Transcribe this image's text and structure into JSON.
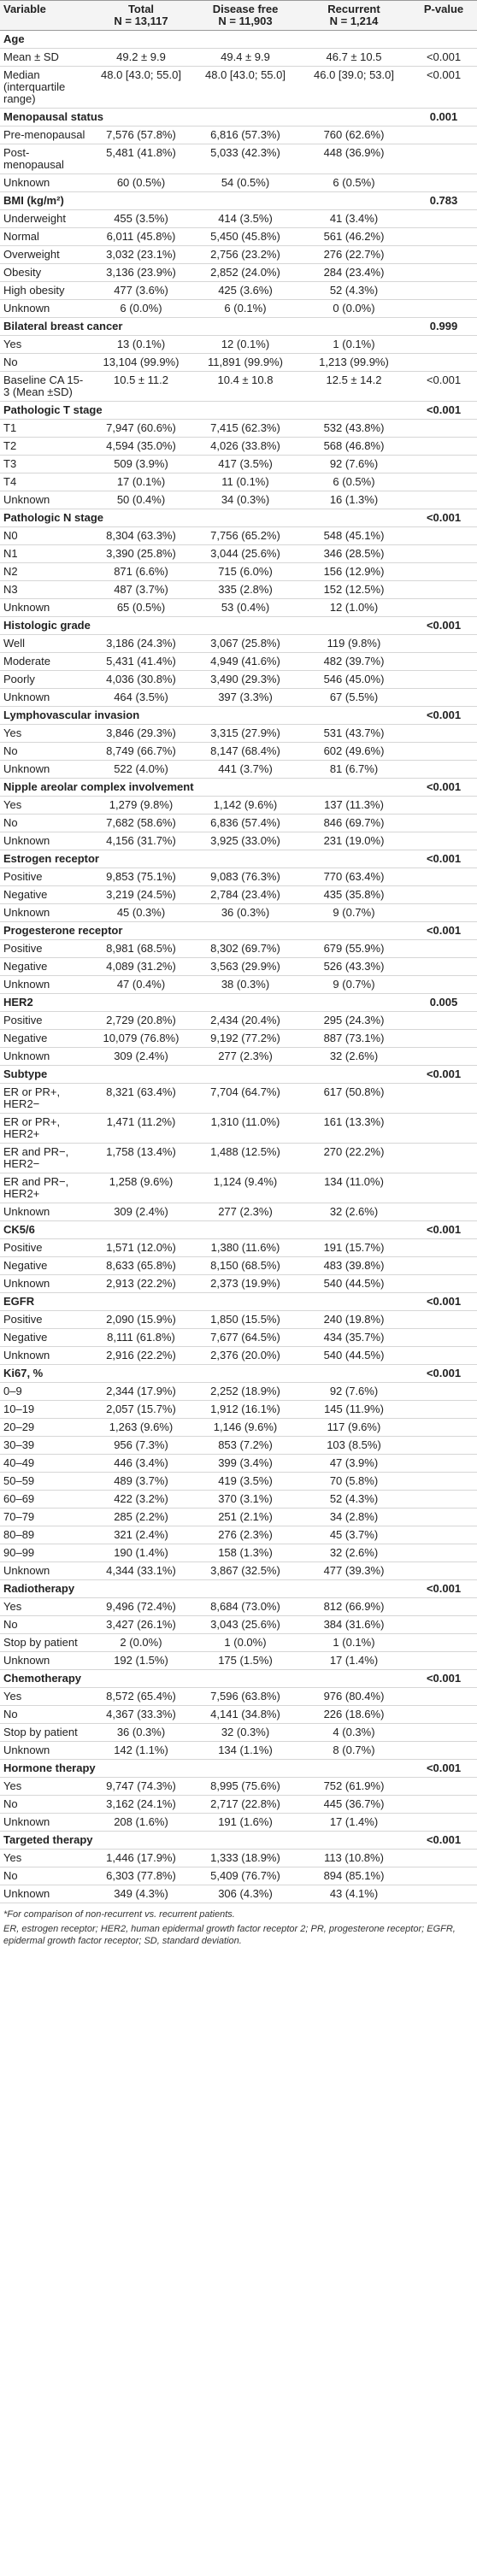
{
  "table": {
    "columns": [
      {
        "title": "Variable"
      },
      {
        "title": "Total",
        "n": "N = 13,117"
      },
      {
        "title": "Disease free",
        "n": "N = 11,903"
      },
      {
        "title": "Recurrent",
        "n": "N = 1,214"
      },
      {
        "title": "P-value"
      }
    ],
    "groups": [
      {
        "title": "Age",
        "rows": [
          [
            "Mean ± SD",
            "49.2 ± 9.9",
            "49.4 ± 9.9",
            "46.7 ± 10.5",
            "<0.001"
          ],
          [
            "Median (interquartile range)",
            "48.0 [43.0; 55.0]",
            "48.0 [43.0; 55.0]",
            "46.0 [39.0; 53.0]",
            "<0.001"
          ]
        ]
      },
      {
        "title": "Menopausal status",
        "p": "0.001",
        "rows": [
          [
            "Pre-menopausal",
            "7,576 (57.8%)",
            "6,816 (57.3%)",
            "760 (62.6%)"
          ],
          [
            "Post-menopausal",
            "5,481 (41.8%)",
            "5,033 (42.3%)",
            "448 (36.9%)"
          ],
          [
            "Unknown",
            "60 (0.5%)",
            "54 (0.5%)",
            "6 (0.5%)"
          ]
        ]
      },
      {
        "title": "BMI (kg/m²)",
        "p": "0.783",
        "rows": [
          [
            "Underweight",
            "455 (3.5%)",
            "414 (3.5%)",
            "41 (3.4%)"
          ],
          [
            "Normal",
            "6,011 (45.8%)",
            "5,450 (45.8%)",
            "561 (46.2%)"
          ],
          [
            "Overweight",
            "3,032 (23.1%)",
            "2,756 (23.2%)",
            "276 (22.7%)"
          ],
          [
            "Obesity",
            "3,136 (23.9%)",
            "2,852 (24.0%)",
            "284 (23.4%)"
          ],
          [
            "High obesity",
            "477 (3.6%)",
            "425 (3.6%)",
            "52 (4.3%)"
          ],
          [
            "Unknown",
            "6 (0.0%)",
            "6 (0.1%)",
            "0 (0.0%)"
          ]
        ]
      },
      {
        "title": "Bilateral breast cancer",
        "p": "0.999",
        "rows": [
          [
            "Yes",
            "13 (0.1%)",
            "12 (0.1%)",
            "1 (0.1%)"
          ],
          [
            "No",
            "13,104 (99.9%)",
            "11,891 (99.9%)",
            "1,213 (99.9%)"
          ],
          [
            "Baseline CA 15-3 (Mean ±SD)",
            "10.5 ± 11.2",
            "10.4 ± 10.8",
            "12.5 ± 14.2",
            "<0.001"
          ]
        ]
      },
      {
        "title": "Pathologic T stage",
        "p": "<0.001",
        "rows": [
          [
            "T1",
            "7,947 (60.6%)",
            "7,415 (62.3%)",
            "532 (43.8%)"
          ],
          [
            "T2",
            "4,594 (35.0%)",
            "4,026 (33.8%)",
            "568 (46.8%)"
          ],
          [
            "T3",
            "509 (3.9%)",
            "417 (3.5%)",
            "92 (7.6%)"
          ],
          [
            "T4",
            "17 (0.1%)",
            "11 (0.1%)",
            "6 (0.5%)"
          ],
          [
            "Unknown",
            "50 (0.4%)",
            "34 (0.3%)",
            "16 (1.3%)"
          ]
        ]
      },
      {
        "title": "Pathologic N stage",
        "p": "<0.001",
        "rows": [
          [
            "N0",
            "8,304 (63.3%)",
            "7,756 (65.2%)",
            "548 (45.1%)"
          ],
          [
            "N1",
            "3,390 (25.8%)",
            "3,044 (25.6%)",
            "346 (28.5%)"
          ],
          [
            "N2",
            "871 (6.6%)",
            "715 (6.0%)",
            "156 (12.9%)"
          ],
          [
            "N3",
            "487 (3.7%)",
            "335 (2.8%)",
            "152 (12.5%)"
          ],
          [
            "Unknown",
            "65 (0.5%)",
            "53 (0.4%)",
            "12 (1.0%)"
          ]
        ]
      },
      {
        "title": "Histologic grade",
        "p": "<0.001",
        "rows": [
          [
            "Well",
            "3,186 (24.3%)",
            "3,067 (25.8%)",
            "119 (9.8%)"
          ],
          [
            "Moderate",
            "5,431 (41.4%)",
            "4,949 (41.6%)",
            "482 (39.7%)"
          ],
          [
            "Poorly",
            "4,036 (30.8%)",
            "3,490 (29.3%)",
            "546 (45.0%)"
          ],
          [
            "Unknown",
            "464 (3.5%)",
            "397 (3.3%)",
            "67 (5.5%)"
          ]
        ]
      },
      {
        "title": "Lymphovascular invasion",
        "p": "<0.001",
        "rows": [
          [
            "Yes",
            "3,846 (29.3%)",
            "3,315 (27.9%)",
            "531 (43.7%)"
          ],
          [
            "No",
            "8,749 (66.7%)",
            "8,147 (68.4%)",
            "602 (49.6%)"
          ],
          [
            "Unknown",
            "522 (4.0%)",
            "441 (3.7%)",
            "81 (6.7%)"
          ]
        ]
      },
      {
        "title": "Nipple areolar complex involvement",
        "p": "<0.001",
        "rows": [
          [
            "Yes",
            "1,279 (9.8%)",
            "1,142 (9.6%)",
            "137 (11.3%)"
          ],
          [
            "No",
            "7,682 (58.6%)",
            "6,836 (57.4%)",
            "846 (69.7%)"
          ],
          [
            "Unknown",
            "4,156 (31.7%)",
            "3,925 (33.0%)",
            "231 (19.0%)"
          ]
        ]
      },
      {
        "title": "Estrogen receptor",
        "p": "<0.001",
        "rows": [
          [
            "Positive",
            "9,853 (75.1%)",
            "9,083 (76.3%)",
            "770 (63.4%)"
          ],
          [
            "Negative",
            "3,219 (24.5%)",
            "2,784 (23.4%)",
            "435 (35.8%)"
          ],
          [
            "Unknown",
            "45 (0.3%)",
            "36 (0.3%)",
            "9 (0.7%)"
          ]
        ]
      },
      {
        "title": "Progesterone receptor",
        "p": "<0.001",
        "rows": [
          [
            "Positive",
            "8,981 (68.5%)",
            "8,302 (69.7%)",
            "679 (55.9%)"
          ],
          [
            "Negative",
            "4,089 (31.2%)",
            "3,563 (29.9%)",
            "526 (43.3%)"
          ],
          [
            "Unknown",
            "47 (0.4%)",
            "38 (0.3%)",
            "9 (0.7%)"
          ]
        ]
      },
      {
        "title": "HER2",
        "p": "0.005",
        "rows": [
          [
            "Positive",
            "2,729 (20.8%)",
            "2,434 (20.4%)",
            "295 (24.3%)"
          ],
          [
            "Negative",
            "10,079 (76.8%)",
            "9,192 (77.2%)",
            "887 (73.1%)"
          ],
          [
            "Unknown",
            "309 (2.4%)",
            "277 (2.3%)",
            "32 (2.6%)"
          ]
        ]
      },
      {
        "title": "Subtype",
        "p": "<0.001",
        "rows": [
          [
            "ER or PR+, HER2−",
            "8,321 (63.4%)",
            "7,704 (64.7%)",
            "617 (50.8%)"
          ],
          [
            "ER or PR+, HER2+",
            "1,471 (11.2%)",
            "1,310 (11.0%)",
            "161 (13.3%)"
          ],
          [
            "ER and PR−, HER2−",
            "1,758 (13.4%)",
            "1,488 (12.5%)",
            "270 (22.2%)"
          ],
          [
            "ER and PR−, HER2+",
            "1,258 (9.6%)",
            "1,124 (9.4%)",
            "134 (11.0%)"
          ],
          [
            "Unknown",
            "309 (2.4%)",
            "277 (2.3%)",
            "32 (2.6%)"
          ]
        ]
      },
      {
        "title": "CK5/6",
        "p": "<0.001",
        "rows": [
          [
            "Positive",
            "1,571 (12.0%)",
            "1,380 (11.6%)",
            "191 (15.7%)"
          ],
          [
            "Negative",
            "8,633 (65.8%)",
            "8,150 (68.5%)",
            "483 (39.8%)"
          ],
          [
            "Unknown",
            "2,913 (22.2%)",
            "2,373 (19.9%)",
            "540 (44.5%)"
          ]
        ]
      },
      {
        "title": "EGFR",
        "p": "<0.001",
        "rows": [
          [
            "Positive",
            "2,090 (15.9%)",
            "1,850 (15.5%)",
            "240 (19.8%)"
          ],
          [
            "Negative",
            "8,111 (61.8%)",
            "7,677 (64.5%)",
            "434 (35.7%)"
          ],
          [
            "Unknown",
            "2,916 (22.2%)",
            "2,376 (20.0%)",
            "540 (44.5%)"
          ]
        ]
      },
      {
        "title": "Ki67, %",
        "p": "<0.001",
        "rows": [
          [
            "0–9",
            "2,344 (17.9%)",
            "2,252 (18.9%)",
            "92 (7.6%)"
          ],
          [
            "10–19",
            "2,057 (15.7%)",
            "1,912 (16.1%)",
            "145 (11.9%)"
          ],
          [
            "20–29",
            "1,263 (9.6%)",
            "1,146 (9.6%)",
            "117 (9.6%)"
          ],
          [
            "30–39",
            "956 (7.3%)",
            "853 (7.2%)",
            "103 (8.5%)"
          ],
          [
            "40–49",
            "446 (3.4%)",
            "399 (3.4%)",
            "47 (3.9%)"
          ],
          [
            "50–59",
            "489 (3.7%)",
            "419 (3.5%)",
            "70 (5.8%)"
          ],
          [
            "60–69",
            "422 (3.2%)",
            "370 (3.1%)",
            "52 (4.3%)"
          ],
          [
            "70–79",
            "285 (2.2%)",
            "251 (2.1%)",
            "34 (2.8%)"
          ],
          [
            "80–89",
            "321 (2.4%)",
            "276 (2.3%)",
            "45 (3.7%)"
          ],
          [
            "90–99",
            "190 (1.4%)",
            "158 (1.3%)",
            "32 (2.6%)"
          ],
          [
            "Unknown",
            "4,344 (33.1%)",
            "3,867 (32.5%)",
            "477 (39.3%)"
          ]
        ]
      },
      {
        "title": "Radiotherapy",
        "p": "<0.001",
        "rows": [
          [
            "Yes",
            "9,496 (72.4%)",
            "8,684 (73.0%)",
            "812 (66.9%)"
          ],
          [
            "No",
            "3,427 (26.1%)",
            "3,043 (25.6%)",
            "384 (31.6%)"
          ],
          [
            "Stop by patient",
            "2 (0.0%)",
            "1 (0.0%)",
            "1 (0.1%)"
          ],
          [
            "Unknown",
            "192 (1.5%)",
            "175 (1.5%)",
            "17 (1.4%)"
          ]
        ]
      },
      {
        "title": "Chemotherapy",
        "p": "<0.001",
        "rows": [
          [
            "Yes",
            "8,572 (65.4%)",
            "7,596 (63.8%)",
            "976 (80.4%)"
          ],
          [
            "No",
            "4,367 (33.3%)",
            "4,141 (34.8%)",
            "226 (18.6%)"
          ],
          [
            "Stop by patient",
            "36 (0.3%)",
            "32 (0.3%)",
            "4 (0.3%)"
          ],
          [
            "Unknown",
            "142 (1.1%)",
            "134 (1.1%)",
            "8 (0.7%)"
          ]
        ]
      },
      {
        "title": "Hormone therapy",
        "p": "<0.001",
        "rows": [
          [
            "Yes",
            "9,747 (74.3%)",
            "8,995 (75.6%)",
            "752 (61.9%)"
          ],
          [
            "No",
            "3,162 (24.1%)",
            "2,717 (22.8%)",
            "445 (36.7%)"
          ],
          [
            "Unknown",
            "208 (1.6%)",
            "191 (1.6%)",
            "17 (1.4%)"
          ]
        ]
      },
      {
        "title": "Targeted therapy",
        "p": "<0.001",
        "rows": [
          [
            "Yes",
            "1,446 (17.9%)",
            "1,333 (18.9%)",
            "113 (10.8%)"
          ],
          [
            "No",
            "6,303 (77.8%)",
            "5,409 (76.7%)",
            "894 (85.1%)"
          ],
          [
            "Unknown",
            "349 (4.3%)",
            "306 (4.3%)",
            "43 (4.1%)"
          ]
        ]
      }
    ]
  },
  "notes": [
    "*For comparison of non-recurrent vs. recurrent patients.",
    "ER, estrogen receptor; HER2, human epidermal growth factor receptor 2; PR, progesterone receptor; EGFR, epidermal growth factor receptor; SD, standard deviation."
  ]
}
